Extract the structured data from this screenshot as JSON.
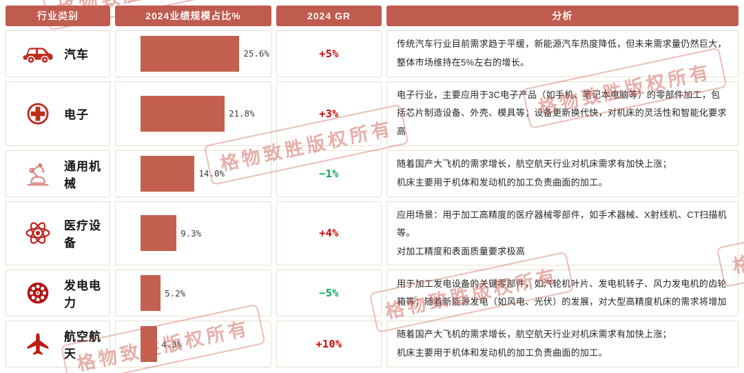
{
  "watermark": {
    "text": "格物致胜版权所有"
  },
  "colors": {
    "header_bg": "#C05B50",
    "bar_fill": "#C4604F",
    "gr_positive": "#D00000",
    "gr_negative": "#00A94F",
    "cell_border": "#E8E0CF",
    "icon_red": "#BE241B",
    "watermark_pink": "#CD5A50"
  },
  "table": {
    "headers": [
      "行业类别",
      "2024业绩规模占比%",
      "2024 GR",
      "分析"
    ],
    "rows": [
      {
        "icon": "car-icon",
        "label": "汽车",
        "share_pct": 25.6,
        "share_label": "25.6%",
        "gr_label": "+5%",
        "gr_direction": "positive",
        "analysis": "传统汽车行业目前需求趋于平缓，新能源汽车热度降低，但未来需求量仍然巨大，整体市场维持在5%左右的增长。"
      },
      {
        "icon": "cross-circle-icon",
        "label": "电子",
        "share_pct": 21.8,
        "share_label": "21.8%",
        "gr_label": "+3%",
        "gr_direction": "positive",
        "analysis": "电子行业，主要应用于3C电子产品（如手机、笔记本电脑等）的零部件加工，包括芯片制造设备、外壳、模具等；设备更新换代快，对机床的灵活性和智能化要求高"
      },
      {
        "icon": "robot-arm-icon",
        "label": "通用机械",
        "share_pct": 14.0,
        "share_label": "14.0%",
        "gr_label": "−1%",
        "gr_direction": "negative",
        "analysis": "随着国产大飞机的需求增长，航空航天行业对机床需求有加快上涨；\n机床主要用于机体和发动机的加工负责曲面的加工。"
      },
      {
        "icon": "atom-icon",
        "label": "医疗设备",
        "share_pct": 9.3,
        "share_label": "9.3%",
        "gr_label": "+4%",
        "gr_direction": "positive",
        "analysis": "应用场景：用于加工高精度的医疗器械零部件，如手术器械、X射线机、CT扫描机等。\n对加工精度和表面质量要求极高"
      },
      {
        "icon": "generator-wheel-icon",
        "label": "发电电力",
        "share_pct": 5.2,
        "share_label": "5.2%",
        "gr_label": "−5%",
        "gr_direction": "negative",
        "analysis": "用于加工发电设备的关键零部件，如汽轮机叶片、发电机转子、风力发电机的齿轮箱等；随着新能源发电（如风电、光伏）的发展，对大型高精度机床的需求将增加"
      },
      {
        "icon": "airplane-icon",
        "label": "航空航天",
        "share_pct": 4.3,
        "share_label": "4.3%",
        "gr_label": "+10%",
        "gr_direction": "positive",
        "analysis": "随着国产大飞机的需求增长，航空航天行业对机床需求有加快上涨；\n机床主要用于机体和发动机的加工负责曲面的加工。"
      }
    ]
  },
  "chart_data": {
    "type": "bar",
    "orientation": "horizontal",
    "title": "",
    "xlabel": "",
    "ylabel": "",
    "categories": [
      "汽车",
      "电子",
      "通用机械",
      "医疗设备",
      "发电电力",
      "航空航天"
    ],
    "series": [
      {
        "name": "2024业绩规模占比%",
        "values": [
          25.6,
          21.8,
          14.0,
          9.3,
          5.2,
          4.3
        ]
      },
      {
        "name": "2024 GR %",
        "values": [
          5,
          3,
          -1,
          4,
          -5,
          10
        ]
      }
    ],
    "xlim": [
      0,
      26
    ],
    "grid": false,
    "legend": false
  }
}
